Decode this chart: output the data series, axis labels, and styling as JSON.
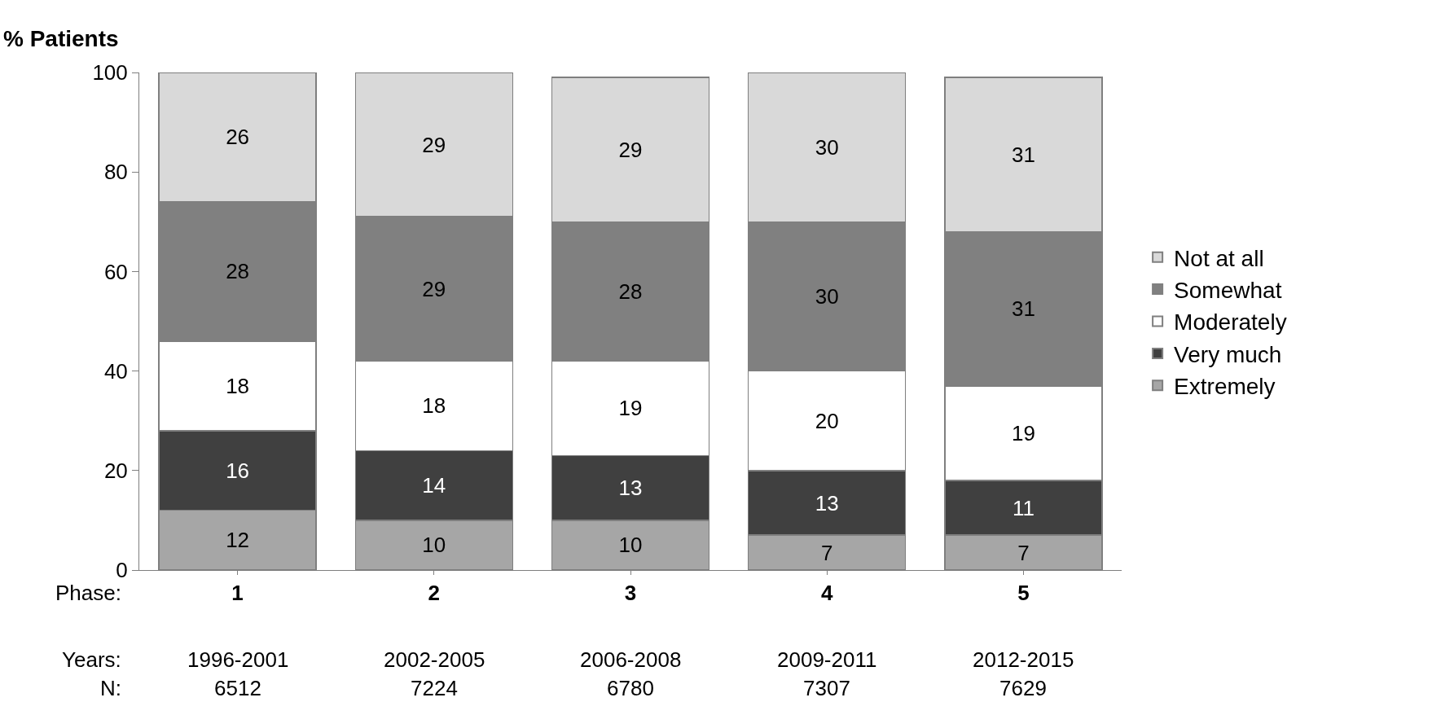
{
  "chart_data": {
    "type": "bar",
    "stacked": true,
    "ylabel": "% Patients",
    "categories": [
      "1",
      "2",
      "3",
      "4",
      "5"
    ],
    "series": [
      {
        "name": "Extremely",
        "color": "#a6a6a6",
        "values": [
          12,
          10,
          10,
          7,
          7
        ]
      },
      {
        "name": "Very much",
        "color": "#404040",
        "values": [
          16,
          14,
          13,
          13,
          11
        ]
      },
      {
        "name": "Moderately",
        "color": "#ffffff",
        "values": [
          18,
          18,
          19,
          20,
          19
        ]
      },
      {
        "name": "Somewhat",
        "color": "#808080",
        "values": [
          28,
          29,
          28,
          30,
          31
        ]
      },
      {
        "name": "Not at all",
        "color": "#d9d9d9",
        "values": [
          26,
          29,
          29,
          30,
          31
        ]
      }
    ],
    "ylim": [
      0,
      100
    ],
    "yticks": [
      0,
      20,
      40,
      60,
      80,
      100
    ],
    "data_labels": true,
    "legend": "right",
    "annotations": [
      "Phase:",
      "Years:",
      "N:",
      "1996-2001",
      "6512",
      "2002-2005",
      "7224",
      "2006-2008",
      "6780",
      "2009-2011",
      "7307",
      "2012-2015",
      "7629"
    ]
  }
}
